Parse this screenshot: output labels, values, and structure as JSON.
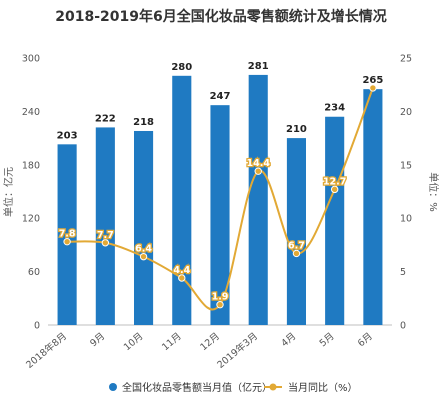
{
  "chart_data": {
    "type": "bar",
    "title": "2018-2019年6月全国化妆品零售额统计及增长情况",
    "categories": [
      "2018年8月",
      "9月",
      "10月",
      "11月",
      "12月",
      "2019年3月",
      "4月",
      "5月",
      "6月"
    ],
    "series": [
      {
        "name": "全国化妆品零售额当月值（亿元）",
        "type": "bar",
        "axis": "left",
        "values": [
          203,
          222,
          218,
          280,
          247,
          281,
          210,
          234,
          265
        ],
        "color": "#1f7ac2"
      },
      {
        "name": "当月同比（%）",
        "type": "line",
        "axis": "right",
        "values": [
          7.8,
          7.7,
          6.4,
          4.4,
          1.9,
          14.4,
          6.7,
          12.7,
          22.2
        ],
        "labels": [
          "7.8",
          "7.7",
          "6.4",
          "4.4",
          "1.9",
          "14.4",
          "6.7",
          "12.7",
          ""
        ],
        "color": "#e2a935"
      }
    ],
    "ylabel": "单位：亿元",
    "y2label": "单位：%",
    "ylim": [
      0,
      300
    ],
    "y2lim": [
      0,
      25
    ],
    "yticks": [
      0,
      60,
      120,
      180,
      240,
      300
    ],
    "y2ticks": [
      0,
      5,
      10,
      15,
      20,
      25
    ],
    "legend_position": "bottom",
    "grid": false
  }
}
